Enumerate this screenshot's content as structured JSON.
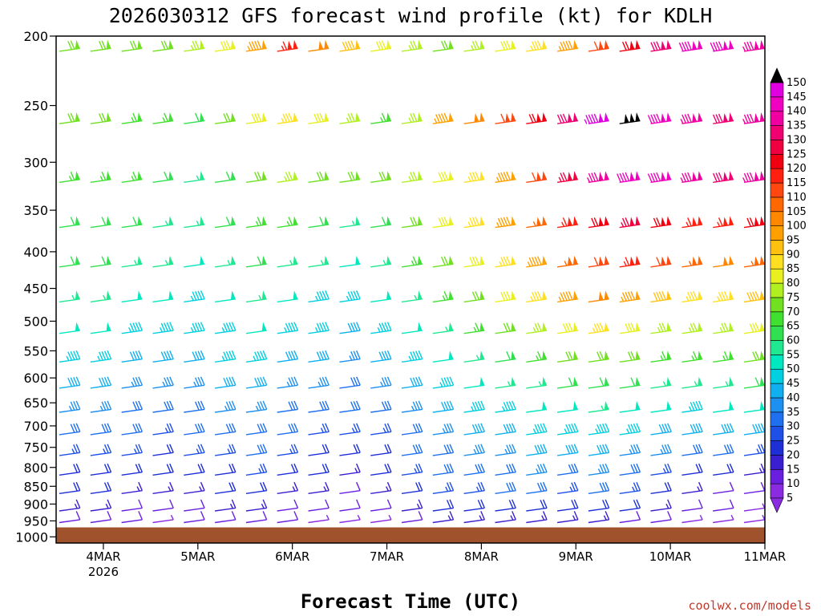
{
  "chart_data": {
    "type": "wind_barb_time_height",
    "title": "2026030312 GFS forecast wind profile (kt) for KDLH",
    "xlabel": "Forecast Time (UTC)",
    "credit": "coolwx.com/models",
    "y_pressure_levels": [
      "200",
      "250",
      "300",
      "350",
      "400",
      "450",
      "500",
      "550",
      "600",
      "650",
      "700",
      "750",
      "800",
      "850",
      "900",
      "950",
      "1000"
    ],
    "y_range_hpa": [
      200,
      1020
    ],
    "x_ticks": [
      {
        "label": "4MAR",
        "sub": "2026",
        "hour": 12
      },
      {
        "label": "5MAR",
        "sub": "",
        "hour": 36
      },
      {
        "label": "6MAR",
        "sub": "",
        "hour": 60
      },
      {
        "label": "7MAR",
        "sub": "",
        "hour": 84
      },
      {
        "label": "8MAR",
        "sub": "",
        "hour": 108
      },
      {
        "label": "9MAR",
        "sub": "",
        "hour": 132
      },
      {
        "label": "10MAR",
        "sub": "",
        "hour": 156
      },
      {
        "label": "11MAR",
        "sub": "",
        "hour": 180
      }
    ],
    "x_range_hours": [
      0,
      180
    ],
    "colorbar": {
      "unit": "kt",
      "labels": [
        "5",
        "10",
        "15",
        "20",
        "25",
        "30",
        "35",
        "40",
        "45",
        "50",
        "55",
        "60",
        "65",
        "70",
        "75",
        "80",
        "85",
        "90",
        "95",
        "100",
        "105",
        "110",
        "115",
        "120",
        "125",
        "130",
        "135",
        "140",
        "145",
        "150"
      ],
      "colors": [
        "#8a2be2",
        "#6a1fe0",
        "#3a1fd0",
        "#1e2fd8",
        "#1e50e8",
        "#1e70f0",
        "#1e90f0",
        "#10b0f0",
        "#00d0e0",
        "#00e8c0",
        "#20e890",
        "#30e050",
        "#40e030",
        "#70e020",
        "#b0f020",
        "#e8f020",
        "#ffe020",
        "#ffc010",
        "#ffa000",
        "#ff8800",
        "#ff6800",
        "#ff4810",
        "#ff2010",
        "#f00010",
        "#f00040",
        "#f00070",
        "#f000a0",
        "#f000c0",
        "#e000e0"
      ],
      "under_color": "#8a2be2",
      "over_color": "#000000"
    },
    "surface_color": "#a0522d",
    "surface_pressure_hpa": 970,
    "wind_profile": [
      {
        "level": 210,
        "speeds": [
          70,
          70,
          70,
          72,
          75,
          80,
          95,
          115,
          100,
          92,
          80,
          75,
          72,
          75,
          80,
          85,
          95,
          110,
          120,
          130,
          140,
          140,
          135
        ]
      },
      {
        "level": 265,
        "speeds": [
          70,
          70,
          68,
          65,
          60,
          70,
          80,
          88,
          82,
          75,
          68,
          75,
          95,
          100,
          110,
          120,
          130,
          145,
          150,
          140,
          135,
          130,
          135
        ]
      },
      {
        "level": 320,
        "speeds": [
          65,
          68,
          65,
          60,
          58,
          62,
          70,
          75,
          72,
          70,
          72,
          78,
          82,
          88,
          95,
          110,
          125,
          135,
          140,
          140,
          135,
          130,
          135
        ]
      },
      {
        "level": 370,
        "speeds": [
          62,
          64,
          62,
          58,
          55,
          60,
          68,
          65,
          62,
          58,
          60,
          70,
          80,
          88,
          95,
          105,
          115,
          120,
          125,
          120,
          115,
          115,
          120
        ]
      },
      {
        "level": 420,
        "speeds": [
          60,
          60,
          58,
          55,
          52,
          58,
          62,
          58,
          55,
          52,
          55,
          65,
          72,
          80,
          88,
          95,
          105,
          112,
          115,
          110,
          105,
          100,
          105
        ]
      },
      {
        "level": 470,
        "speeds": [
          55,
          55,
          52,
          50,
          48,
          50,
          55,
          50,
          48,
          45,
          50,
          58,
          65,
          72,
          80,
          85,
          95,
          100,
          95,
          90,
          85,
          88,
          92
        ]
      },
      {
        "level": 520,
        "speeds": [
          50,
          50,
          48,
          45,
          45,
          48,
          50,
          48,
          45,
          42,
          45,
          52,
          58,
          65,
          72,
          78,
          82,
          85,
          82,
          78,
          75,
          78,
          80
        ]
      },
      {
        "level": 570,
        "speeds": [
          45,
          45,
          42,
          40,
          42,
          45,
          45,
          42,
          40,
          38,
          40,
          48,
          52,
          58,
          62,
          68,
          72,
          72,
          70,
          68,
          65,
          68,
          70
        ]
      },
      {
        "level": 620,
        "speeds": [
          40,
          40,
          38,
          36,
          38,
          40,
          42,
          38,
          36,
          34,
          36,
          42,
          48,
          52,
          55,
          58,
          60,
          62,
          60,
          58,
          55,
          58,
          60
        ]
      },
      {
        "level": 670,
        "speeds": [
          36,
          36,
          34,
          32,
          34,
          36,
          38,
          34,
          32,
          30,
          32,
          38,
          42,
          45,
          48,
          50,
          52,
          55,
          52,
          50,
          48,
          50,
          52
        ]
      },
      {
        "level": 720,
        "speeds": [
          32,
          32,
          30,
          28,
          30,
          32,
          34,
          30,
          28,
          26,
          28,
          34,
          38,
          40,
          42,
          45,
          46,
          48,
          45,
          42,
          40,
          42,
          44
        ]
      },
      {
        "level": 770,
        "speeds": [
          28,
          28,
          26,
          24,
          26,
          28,
          30,
          26,
          24,
          22,
          24,
          30,
          34,
          36,
          38,
          40,
          40,
          42,
          38,
          35,
          32,
          30,
          28
        ]
      },
      {
        "level": 820,
        "speeds": [
          24,
          24,
          22,
          20,
          22,
          24,
          26,
          22,
          20,
          18,
          20,
          26,
          30,
          32,
          34,
          35,
          34,
          36,
          32,
          28,
          24,
          20,
          18
        ]
      },
      {
        "level": 870,
        "speeds": [
          20,
          20,
          18,
          16,
          18,
          20,
          22,
          18,
          16,
          14,
          16,
          22,
          26,
          28,
          30,
          30,
          28,
          30,
          26,
          22,
          18,
          14,
          12
        ]
      },
      {
        "level": 920,
        "speeds": [
          15,
          15,
          14,
          12,
          14,
          16,
          18,
          14,
          12,
          10,
          12,
          18,
          20,
          22,
          24,
          24,
          22,
          24,
          20,
          16,
          12,
          10,
          8
        ]
      },
      {
        "level": 955,
        "speeds": [
          10,
          10,
          10,
          8,
          10,
          12,
          14,
          10,
          8,
          7,
          8,
          14,
          16,
          18,
          18,
          18,
          16,
          18,
          14,
          10,
          8,
          7,
          6
        ]
      }
    ]
  }
}
